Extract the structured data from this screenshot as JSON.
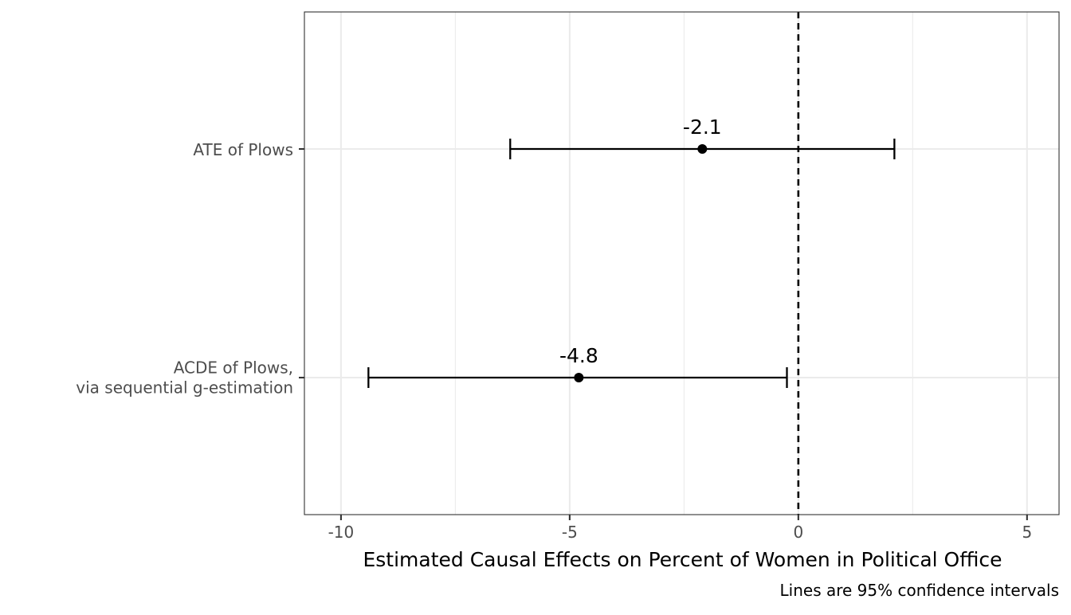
{
  "chart_data": {
    "type": "scatter",
    "subtype": "point-range",
    "orientation": "horizontal",
    "xlabel": "Estimated Causal Effects on Percent of Women in Political Office",
    "caption": "Lines are 95% confidence intervals",
    "xlim": [
      -10.8,
      5.7
    ],
    "x_ticks": [
      -10,
      -5,
      0,
      5
    ],
    "x_tick_labels": [
      "-10",
      "-5",
      "0",
      "5"
    ],
    "reference_line": {
      "x": 0,
      "style": "dashed"
    },
    "grid": true,
    "legend": "none",
    "categories": [
      [
        "ATE of Plows"
      ],
      [
        "ACDE of Plows,",
        "via sequential g-estimation"
      ]
    ],
    "points": [
      {
        "estimate": -2.1,
        "lower": -6.3,
        "upper": 2.1,
        "label": "-2.1"
      },
      {
        "estimate": -4.8,
        "lower": -9.4,
        "upper": -0.25,
        "label": "-4.8"
      }
    ],
    "colors": {
      "marks": "#000000",
      "grid": "#ebebeb",
      "panel_border": "#333333",
      "tick_text": "#4d4d4d"
    }
  }
}
